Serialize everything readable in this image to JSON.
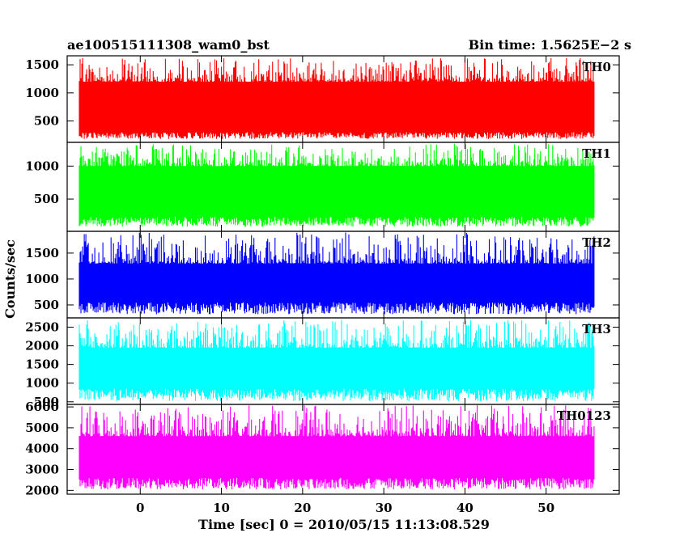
{
  "chart_data": {
    "type": "line",
    "title": "ae100515111308_wam0_bst",
    "subtitle": "Bin time: 1.5625E−2 s",
    "xlabel": "Time [sec] 0 = 2010/05/15 11:13:08.529",
    "ylabel": "Counts/sec",
    "xlim": [
      -9,
      59
    ],
    "x_data_range": [
      -7.5,
      56
    ],
    "xticks": [
      0,
      10,
      20,
      30,
      40,
      50
    ],
    "xtick_labels": [
      "0",
      "10",
      "20",
      "30",
      "40",
      "50"
    ],
    "grid": false,
    "panels": [
      {
        "label": "TH0",
        "color": "#ff0000",
        "ylim": [
          120,
          1660
        ],
        "yticks": [
          500,
          1000,
          1500
        ],
        "ytick_labels": [
          "500",
          "1000",
          "1500"
        ],
        "baseline_low": 300,
        "baseline_high": 1200,
        "typical_min": 180,
        "peak_max": 1620
      },
      {
        "label": "TH1",
        "color": "#00ff00",
        "ylim": [
          10,
          1360
        ],
        "yticks": [
          500,
          1000
        ],
        "ytick_labels": [
          "500",
          "1000"
        ],
        "baseline_low": 230,
        "baseline_high": 1000,
        "typical_min": 80,
        "peak_max": 1340
      },
      {
        "label": "TH2",
        "color": "#0000ff",
        "ylim": [
          250,
          1920
        ],
        "yticks": [
          500,
          1000,
          1500
        ],
        "ytick_labels": [
          "500",
          "1000",
          "1500"
        ],
        "baseline_low": 550,
        "baseline_high": 1300,
        "typical_min": 320,
        "peak_max": 1900
      },
      {
        "label": "TH3",
        "color": "#00ffff",
        "ylim": [
          430,
          2750
        ],
        "yticks": [
          500,
          1000,
          1500,
          2000,
          2500
        ],
        "ytick_labels": [
          "500",
          "1000",
          "1500",
          "2000",
          "2500"
        ],
        "baseline_low": 850,
        "baseline_high": 1950,
        "typical_min": 520,
        "peak_max": 2700
      },
      {
        "label": "TH0123",
        "color": "#ff00ff",
        "ylim": [
          1820,
          6120
        ],
        "yticks": [
          2000,
          3000,
          4000,
          5000,
          6000
        ],
        "ytick_labels": [
          "2000",
          "3000",
          "4000",
          "5000",
          "6000"
        ],
        "baseline_low": 2600,
        "baseline_high": 4600,
        "typical_min": 2050,
        "peak_max": 6100
      }
    ]
  }
}
